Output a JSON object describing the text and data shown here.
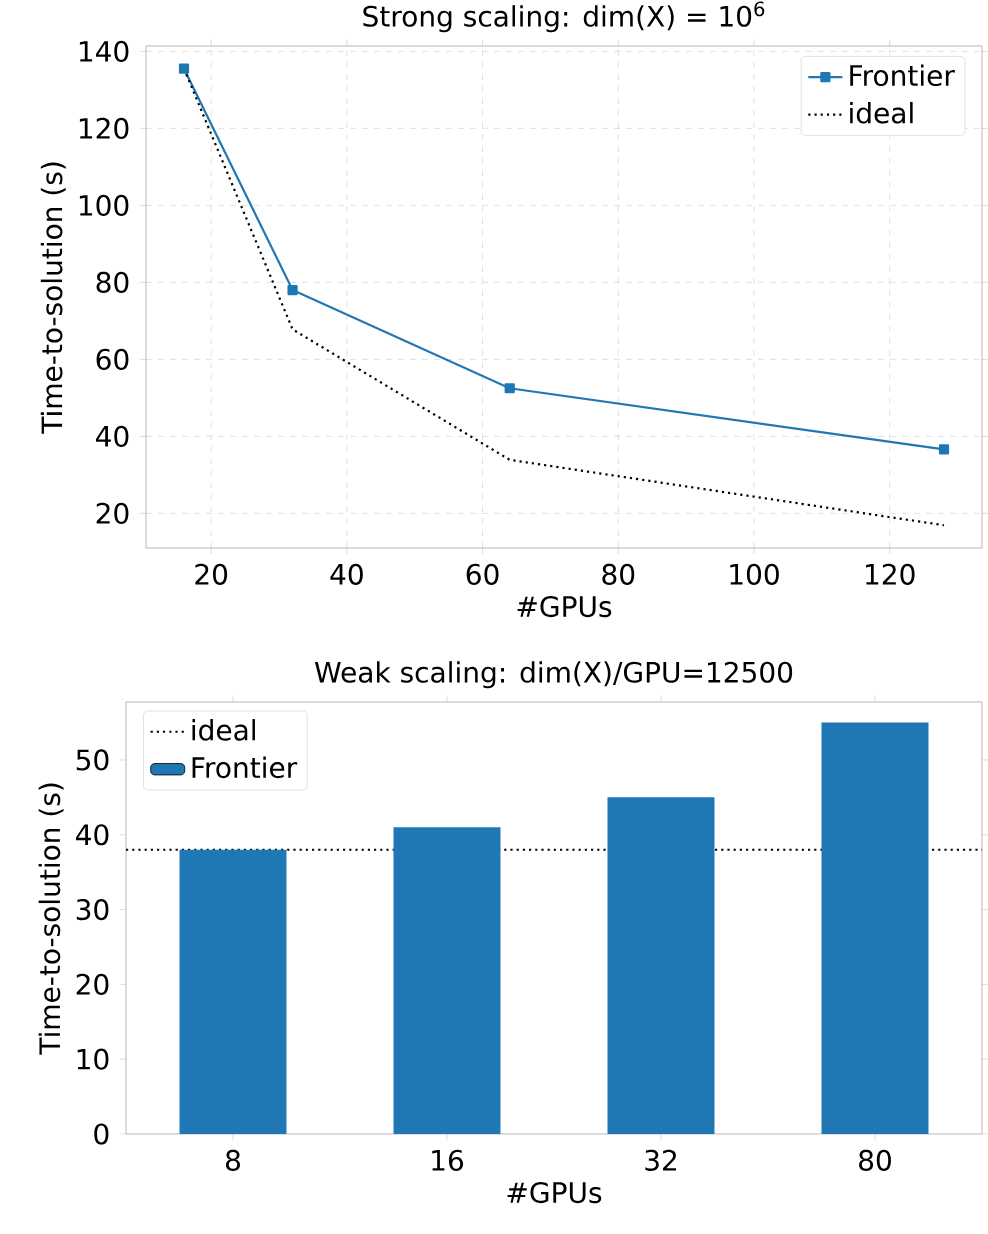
{
  "chart_data": [
    {
      "type": "line",
      "title": "Strong scaling: dim(X) = 10$^{6}$",
      "xlabel": "#GPUs",
      "ylabel": "Time-to-solution (s)",
      "x": [
        16,
        32,
        64,
        128
      ],
      "series": [
        {
          "name": "Frontier",
          "color": "#1f77b4",
          "values": [
            135.5,
            78,
            52.5,
            36.6
          ],
          "marker": "square",
          "line_style": "solid"
        },
        {
          "name": "ideal",
          "color": "#000000",
          "values": [
            135.5,
            67.8,
            33.9,
            16.9
          ],
          "marker": "none",
          "line_style": "dotted"
        }
      ],
      "xlim": [
        10.4,
        133.6
      ],
      "ylim": [
        11,
        141.4
      ],
      "xticks": [
        20,
        40,
        60,
        80,
        100,
        120
      ],
      "yticks": [
        20,
        40,
        60,
        80,
        100,
        120,
        140
      ],
      "grid": true,
      "legend": "top right"
    },
    {
      "type": "bar",
      "title": "Weak scaling: dim(X)/GPU=12500",
      "xlabel": "#GPUs",
      "ylabel": "Time-to-solution (s)",
      "categories": [
        "8",
        "16",
        "32",
        "80"
      ],
      "series": [
        {
          "name": "Frontier",
          "color": "#1f77b4",
          "values": [
            38,
            41,
            45,
            55
          ]
        }
      ],
      "ref_lines": [
        {
          "axis": "y",
          "value": 38,
          "label": "ideal",
          "color": "#000000",
          "line_style": "dotted"
        }
      ],
      "ylim": [
        0,
        57.75
      ],
      "yticks": [
        0,
        10,
        20,
        30,
        40,
        50
      ],
      "legend": "top left"
    }
  ]
}
